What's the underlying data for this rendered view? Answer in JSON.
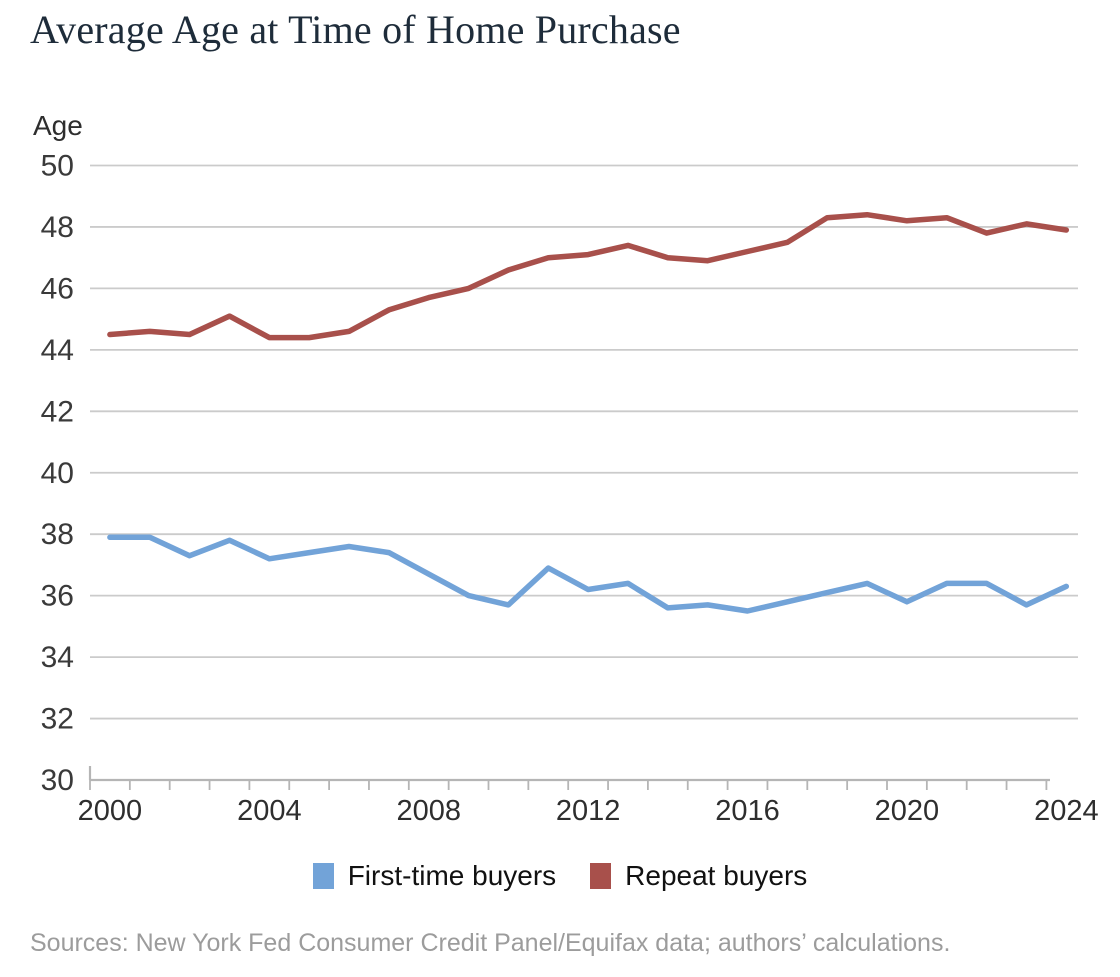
{
  "title": "Average Age at Time of Home Purchase",
  "y_axis_title": "Age",
  "sources": "Sources: New York Fed Consumer Credit Panel/Equifax data; authors’ calculations.",
  "colors": {
    "first_time_buyers": "#72a3d8",
    "repeat_buyers": "#a8504b",
    "gridline": "#cbcbcb",
    "axis": "#b5b5b5",
    "title_text": "#1e2c3a",
    "source_text": "#9c9c9c"
  },
  "chart_data": {
    "type": "line",
    "title": "Average Age at Time of Home Purchase",
    "xlabel": "",
    "ylabel": "Age",
    "ylim": [
      30,
      50
    ],
    "ytick_step": 2,
    "ytick_labels": [
      30,
      32,
      34,
      36,
      38,
      40,
      42,
      44,
      46,
      48,
      50
    ],
    "xlim": [
      2000,
      2024
    ],
    "xtick_labels": [
      2000,
      2004,
      2008,
      2012,
      2016,
      2020,
      2024
    ],
    "grid": true,
    "legend_position": "bottom",
    "x": [
      2000,
      2001,
      2002,
      2003,
      2004,
      2005,
      2006,
      2007,
      2008,
      2009,
      2010,
      2011,
      2012,
      2013,
      2014,
      2015,
      2016,
      2017,
      2018,
      2019,
      2020,
      2021,
      2022,
      2023,
      2024
    ],
    "series": [
      {
        "name": "First-time buyers",
        "color": "#72a3d8",
        "values": [
          37.9,
          37.9,
          37.3,
          37.8,
          37.2,
          37.4,
          37.6,
          37.4,
          36.7,
          36.0,
          35.7,
          36.9,
          36.2,
          36.4,
          35.6,
          35.7,
          35.5,
          35.8,
          36.1,
          36.4,
          35.8,
          36.4,
          36.4,
          35.7,
          36.3
        ]
      },
      {
        "name": "Repeat buyers",
        "color": "#a8504b",
        "values": [
          44.5,
          44.6,
          44.5,
          45.1,
          44.4,
          44.4,
          44.6,
          45.3,
          45.7,
          46.0,
          46.6,
          47.0,
          47.1,
          47.4,
          47.0,
          46.9,
          47.2,
          47.5,
          48.3,
          48.4,
          48.2,
          48.3,
          47.8,
          48.1,
          47.9
        ]
      }
    ]
  }
}
